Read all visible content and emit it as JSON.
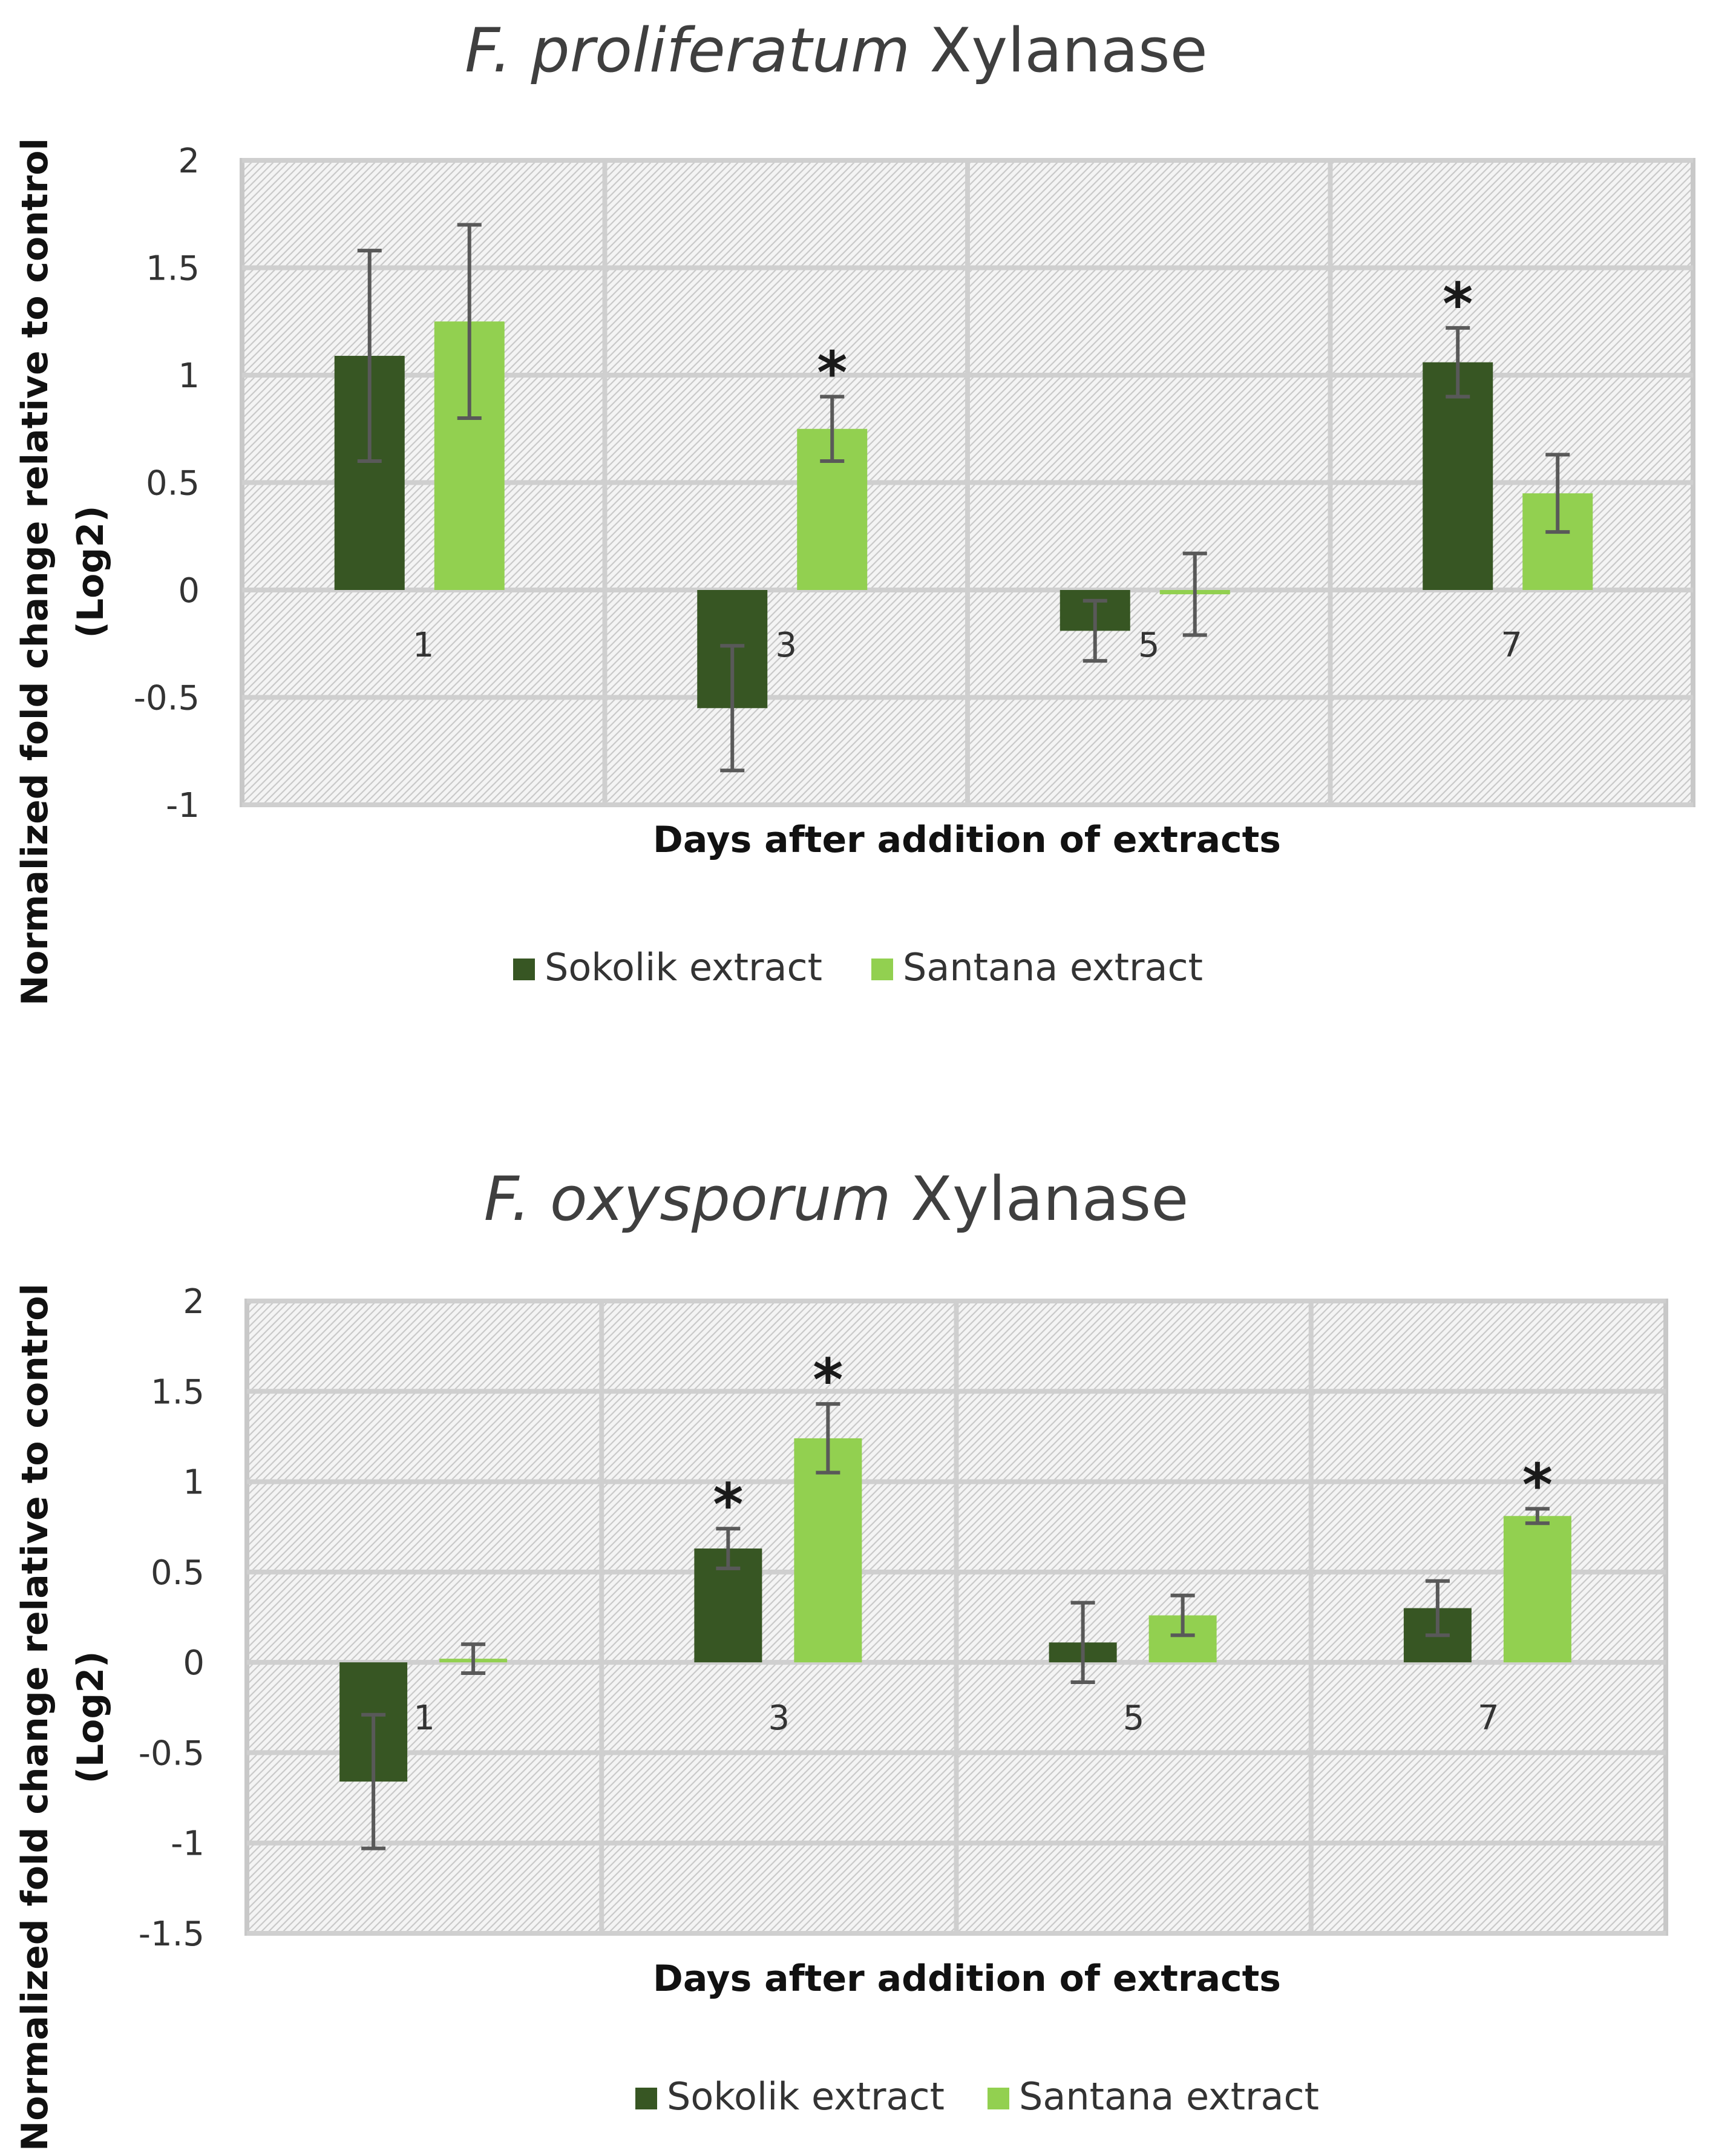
{
  "chart_data": [
    {
      "type": "bar",
      "title_italic": "F. proliferatum",
      "title_rest": " Xylanase",
      "xlabel": "Days after addition of extracts",
      "ylabel_line1": "Normalized fold change  relative to control",
      "ylabel_line2": "(Log2)",
      "ylim": [
        -1,
        2
      ],
      "yticks": [
        2,
        1.5,
        1,
        0.5,
        0,
        -0.5,
        -1
      ],
      "categories": [
        "1",
        "3",
        "5",
        "7"
      ],
      "series": [
        {
          "name": "Sokolik extract",
          "color": "#375623",
          "values": [
            1.09,
            -0.55,
            -0.19,
            1.06
          ],
          "errors": [
            0.49,
            0.29,
            0.14,
            0.16
          ],
          "significant": [
            false,
            false,
            false,
            true
          ]
        },
        {
          "name": "Santana extract",
          "color": "#92d050",
          "values": [
            1.25,
            0.75,
            -0.02,
            0.45
          ],
          "errors": [
            0.45,
            0.15,
            0.19,
            0.18
          ],
          "significant": [
            false,
            true,
            false,
            false
          ]
        }
      ],
      "significance_marker": "*"
    },
    {
      "type": "bar",
      "title_italic": "F. oxysporum",
      "title_rest": " Xylanase",
      "xlabel": "Days after addition of extracts",
      "ylabel_line1": "Normalized fold change  relative to control",
      "ylabel_line2": "(Log2)",
      "ylim": [
        -1.5,
        2
      ],
      "yticks": [
        2,
        1.5,
        1,
        0.5,
        0,
        -0.5,
        -1,
        -1.5
      ],
      "categories": [
        "1",
        "3",
        "5",
        "7"
      ],
      "series": [
        {
          "name": "Sokolik extract",
          "color": "#375623",
          "values": [
            -0.66,
            0.63,
            0.11,
            0.3
          ],
          "errors": [
            0.37,
            0.11,
            0.22,
            0.15
          ],
          "significant": [
            false,
            true,
            false,
            false
          ]
        },
        {
          "name": "Santana extract",
          "color": "#92d050",
          "values": [
            0.02,
            1.24,
            0.26,
            0.81
          ],
          "errors": [
            0.08,
            0.19,
            0.11,
            0.04
          ],
          "significant": [
            false,
            true,
            false,
            true
          ]
        }
      ],
      "significance_marker": "*"
    }
  ]
}
